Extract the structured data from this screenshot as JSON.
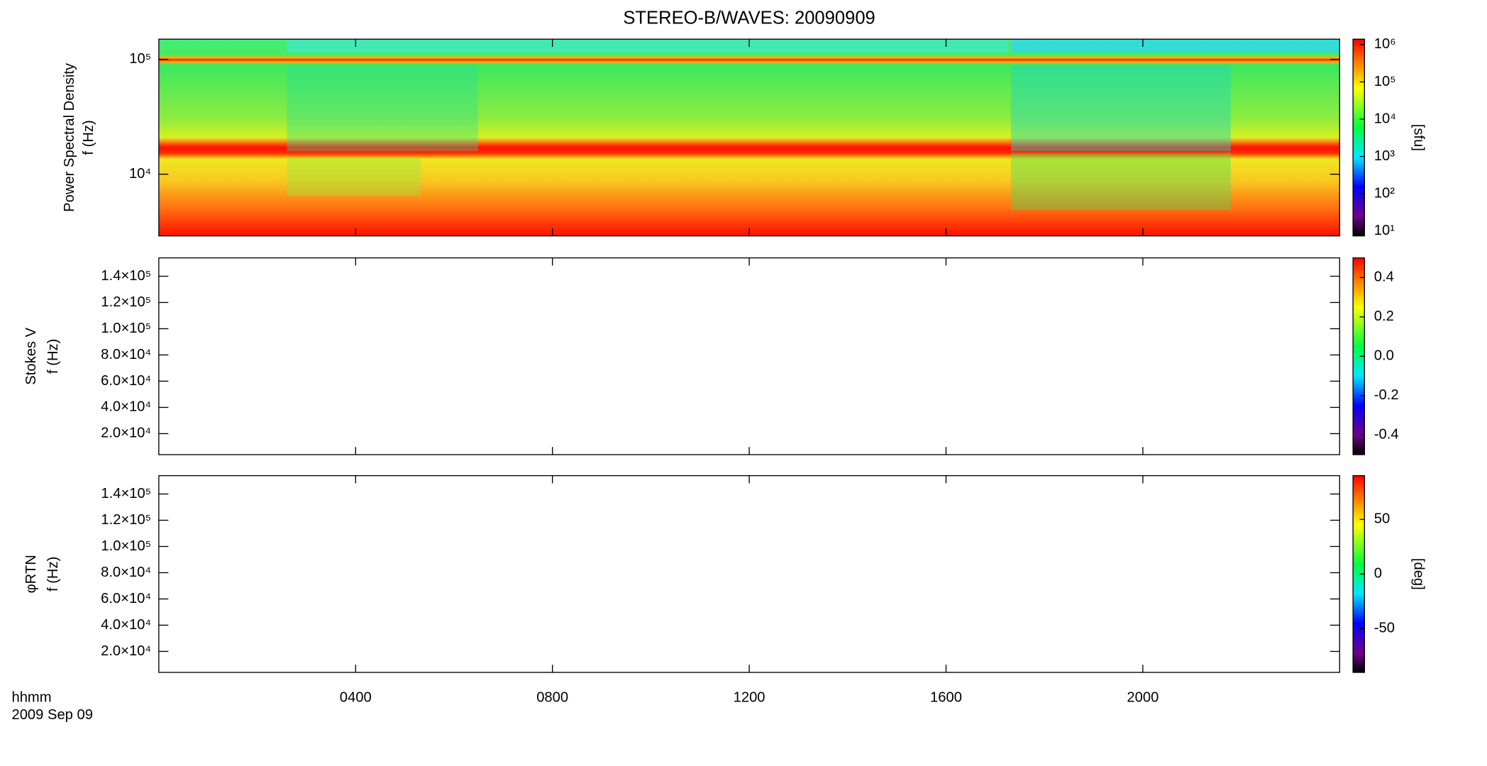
{
  "chart_data": {
    "type": "heatmap",
    "title": "STEREO-B/WAVES: 20090909",
    "xlabel": [
      "hhmm",
      "2009 Sep 09"
    ],
    "xlim": [
      0,
      24
    ],
    "xticks": [
      {
        "value": 4,
        "label": "0400"
      },
      {
        "value": 8,
        "label": "0800"
      },
      {
        "value": 12,
        "label": "1200"
      },
      {
        "value": 16,
        "label": "1600"
      },
      {
        "value": 20,
        "label": "2000"
      }
    ],
    "panels": [
      {
        "ylabel": [
          "Power Spectral Density",
          "f (Hz)"
        ],
        "ylog": true,
        "ylim": [
          2900,
          150000
        ],
        "yticks": [
          {
            "value": 10000,
            "label": "10⁴"
          },
          {
            "value": 100000,
            "label": "10⁵"
          }
        ],
        "colorbar": {
          "label": "[sfu]",
          "log": true,
          "lim": [
            7.4,
            1400000
          ],
          "ticks": [
            {
              "value": 10,
              "label": "10¹"
            },
            {
              "value": 100,
              "label": "10²"
            },
            {
              "value": 1000,
              "label": "10³"
            },
            {
              "value": 10000,
              "label": "10⁴"
            },
            {
              "value": 100000,
              "label": "10⁵"
            },
            {
              "value": 1000000,
              "label": "10⁶"
            }
          ]
        }
      },
      {
        "ylabel": [
          "Stokes V",
          "f (Hz)"
        ],
        "ylog": false,
        "ylim": [
          4000,
          154000
        ],
        "yticks": [
          {
            "value": 20000,
            "label": "2.0×10⁴"
          },
          {
            "value": 40000,
            "label": "4.0×10⁴"
          },
          {
            "value": 60000,
            "label": "6.0×10⁴"
          },
          {
            "value": 80000,
            "label": "8.0×10⁴"
          },
          {
            "value": 100000,
            "label": "1.0×10⁵"
          },
          {
            "value": 120000,
            "label": "1.2×10⁵"
          },
          {
            "value": 140000,
            "label": "1.4×10⁵"
          }
        ],
        "colorbar": {
          "log": false,
          "lim": [
            -0.5,
            0.5
          ],
          "ticks": [
            -0.4,
            -0.2,
            {
              "value": 0,
              "label": "0.0"
            },
            0.2,
            0.4
          ]
        }
      },
      {
        "ylabel": [
          "φRTN",
          "f (Hz)"
        ],
        "ylog": false,
        "ylim": [
          4000,
          154000
        ],
        "yticks": [
          {
            "value": 20000,
            "label": "2.0×10⁴"
          },
          {
            "value": 40000,
            "label": "4.0×10⁴"
          },
          {
            "value": 60000,
            "label": "6.0×10⁴"
          },
          {
            "value": 80000,
            "label": "8.0×10⁴"
          },
          {
            "value": 100000,
            "label": "1.0×10⁵"
          },
          {
            "value": 120000,
            "label": "1.2×10⁵"
          },
          {
            "value": 140000,
            "label": "1.4×10⁵"
          }
        ],
        "colorbar": {
          "label": "[deg]",
          "log": false,
          "lim": [
            -90,
            90
          ],
          "ticks": [
            -50,
            0,
            50
          ]
        }
      }
    ]
  }
}
